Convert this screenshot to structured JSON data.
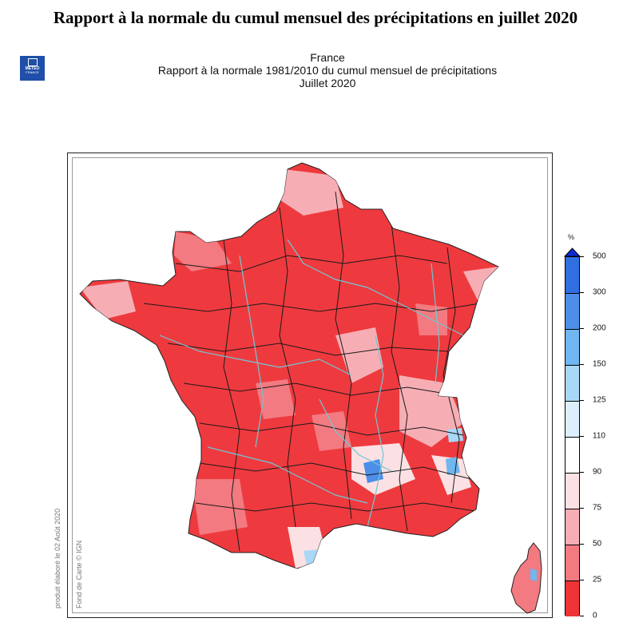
{
  "page": {
    "title": "Rapport à la normale du cumul mensuel des précipitations en juillet 2020"
  },
  "logo": {
    "line1": "METEO",
    "line2": "FRANCE"
  },
  "map_header": {
    "line1": "France",
    "line2": "Rapport à la normale 1981/2010 du cumul mensuel de précipitations",
    "line3": "Juillet 2020"
  },
  "credits": {
    "produced": "produit élaboré le 02 Août 2020",
    "basemap": "Fond de Carte © IGN"
  },
  "legend": {
    "unit": "%",
    "labels": [
      "500",
      "300",
      "200",
      "150",
      "125",
      "110",
      "90",
      "75",
      "50",
      "25",
      "0"
    ],
    "colors": [
      "#0a2bd6",
      "#2f6fe0",
      "#4d8fe8",
      "#70b6f0",
      "#a9d8f6",
      "#ddeffc",
      "#ffffff",
      "#fbe1e3",
      "#f6aeb4",
      "#f27a80",
      "#ee3438"
    ]
  }
}
